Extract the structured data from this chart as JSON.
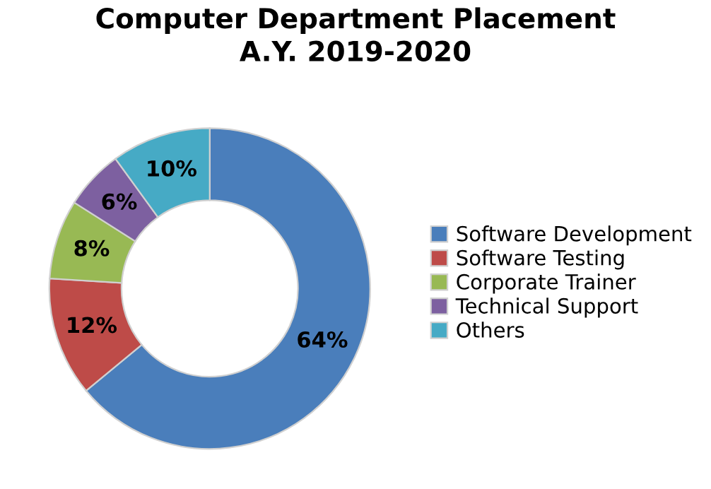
{
  "chart_data": {
    "type": "donut",
    "title": "Computer Department Placement\nA.Y. 2019-2020",
    "categories": [
      "Software Development",
      "Software Testing",
      "Corporate Trainer",
      "Technical Support",
      "Others"
    ],
    "values": [
      64,
      12,
      8,
      6,
      10
    ],
    "colors": [
      "#4a7ebb",
      "#be4b48",
      "#98b954",
      "#7d60a0",
      "#46aac5"
    ],
    "value_labels": [
      "64%",
      "12%",
      "8%",
      "6%",
      "10%"
    ],
    "legend": "right"
  }
}
